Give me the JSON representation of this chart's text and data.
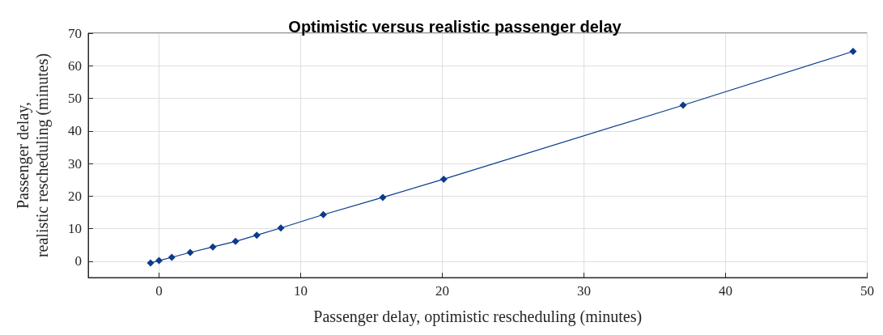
{
  "chart_data": {
    "type": "line",
    "title": "Optimistic versus realistic passenger delay",
    "xlabel": "Passenger delay, optimistic rescheduling (minutes)",
    "ylabel": "Passenger delay,\nrealistic rescheduling (minutes)",
    "x": [
      -0.6,
      0,
      0.9,
      2.2,
      3.8,
      5.4,
      6.9,
      8.6,
      11.6,
      15.8,
      20.1,
      37,
      49
    ],
    "series": [
      {
        "color": "#0b3b8c",
        "values": [
          -0.5,
          0.2,
          1.2,
          2.7,
          4.4,
          6.1,
          8,
          10.2,
          14.3,
          19.6,
          25.2,
          47.9,
          64.4
        ]
      }
    ],
    "xlim": [
      -5,
      50
    ],
    "xticks": [
      0,
      10,
      20,
      30,
      40,
      50
    ],
    "ylim": [
      -5,
      70
    ],
    "yticks": [
      0,
      10,
      20,
      30,
      40,
      50,
      60,
      70
    ],
    "grid": true,
    "marker": "diamond",
    "line_style": "solid"
  }
}
